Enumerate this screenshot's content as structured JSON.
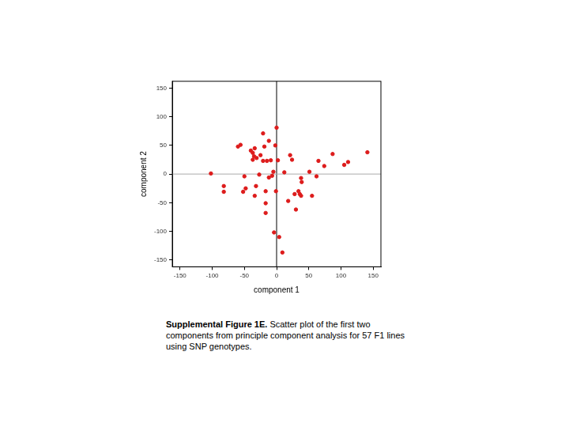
{
  "chart_data": {
    "type": "scatter",
    "x_label": "component 1",
    "y_label": "component 2",
    "x": [
      -102,
      -82,
      -82,
      -60,
      -56,
      -50,
      -52,
      -48,
      -40,
      -37,
      -35,
      -37,
      -31,
      -34,
      -32,
      -34,
      -27,
      -25,
      -21,
      -19,
      -21,
      -17,
      -17,
      -17,
      -12,
      -9,
      -12,
      -5,
      -7,
      -2,
      -1,
      0,
      -4,
      4,
      9,
      2,
      12,
      18,
      21,
      24,
      28,
      30,
      34,
      36,
      39,
      38,
      51,
      55,
      62,
      65,
      74,
      87,
      105,
      111,
      141,
      38,
      -15
    ],
    "values": [
      1,
      -21,
      -31,
      48,
      51,
      -4,
      -31,
      -25,
      41,
      37,
      31,
      25,
      28,
      45,
      -21,
      -38,
      -1,
      33,
      71,
      48,
      23,
      -30,
      -51,
      -68,
      58,
      24,
      -6,
      4,
      -3,
      50,
      -30,
      81,
      -102,
      -110,
      -137,
      24,
      3,
      -47,
      33,
      25,
      -35,
      -62,
      -30,
      -35,
      -14,
      -38,
      4,
      -38,
      -4,
      23,
      14,
      35,
      16,
      21,
      38,
      -7,
      23
    ],
    "color": "#dd1c1c",
    "marker": "circle",
    "xlim": [
      -162,
      162
    ],
    "ylim": [
      -162,
      162
    ],
    "xticks": [
      -150,
      -100,
      -50,
      0,
      50,
      100,
      150
    ],
    "yticks": [
      -150,
      -100,
      -50,
      0,
      50,
      100,
      150
    ],
    "grid": false,
    "reference_lines": [
      {
        "axis": "x",
        "value": 0,
        "color": "#000000"
      },
      {
        "axis": "y",
        "value": 0,
        "color": "#aaaaaa"
      }
    ],
    "caption": {
      "label": "Supplemental Figure 1E.",
      "text": "Scatter plot of the first two components from principle component analysis for 57 F1 lines using SNP genotypes."
    }
  }
}
